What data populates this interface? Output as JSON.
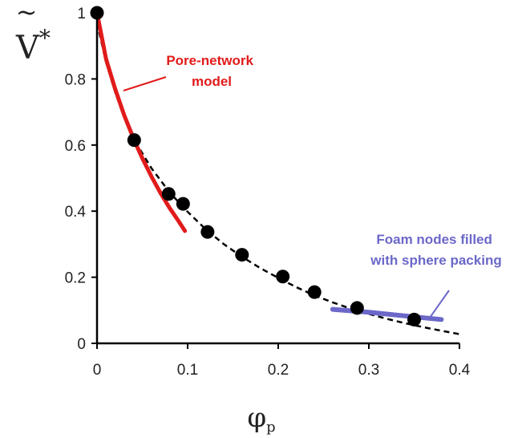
{
  "chart_data": {
    "type": "scatter",
    "xlabel": "φ",
    "xlabel_subscript": "p",
    "ylabel": "V",
    "ylabel_accent": "~",
    "ylabel_superscript": "*",
    "xlim": [
      0,
      0.4
    ],
    "ylim": [
      0,
      1
    ],
    "x_ticks": [
      "0",
      "0.1",
      "0.2",
      "0.3",
      "0.4"
    ],
    "y_ticks": [
      "0",
      "0.2",
      "0.4",
      "0.6",
      "0.8",
      "1"
    ],
    "grid": false,
    "colors": {
      "points": "#000000",
      "dashed_fit": "#000000",
      "pore_network": "#e11b1b",
      "foam_nodes": "#6b68c9"
    },
    "series": [
      {
        "kind": "points",
        "x": [
          0,
          0.041,
          0.079,
          0.095,
          0.122,
          0.16,
          0.205,
          0.24,
          0.287,
          0.35
        ],
        "y": [
          1.0,
          0.615,
          0.452,
          0.422,
          0.337,
          0.268,
          0.202,
          0.155,
          0.107,
          0.072
        ]
      },
      {
        "kind": "dashed-curve",
        "x": [
          0,
          0.01,
          0.02,
          0.03,
          0.04,
          0.06,
          0.08,
          0.1,
          0.12,
          0.14,
          0.16,
          0.18,
          0.2,
          0.22,
          0.24,
          0.26,
          0.28,
          0.3,
          0.32,
          0.34,
          0.36,
          0.38,
          0.4
        ],
        "y": [
          0.97,
          0.85,
          0.76,
          0.685,
          0.62,
          0.53,
          0.457,
          0.398,
          0.345,
          0.3,
          0.262,
          0.228,
          0.198,
          0.17,
          0.145,
          0.124,
          0.105,
          0.089,
          0.074,
          0.061,
          0.049,
          0.038,
          0.028
        ]
      },
      {
        "kind": "solid-curve",
        "name": "Pore-network model",
        "x": [
          0,
          0.01,
          0.02,
          0.03,
          0.041,
          0.05,
          0.06,
          0.07,
          0.08,
          0.09,
          0.097
        ],
        "y": [
          1.0,
          0.86,
          0.77,
          0.69,
          0.615,
          0.56,
          0.505,
          0.455,
          0.41,
          0.37,
          0.34
        ]
      },
      {
        "kind": "solid-curve",
        "name": "Foam nodes filled with sphere packing",
        "x": [
          0.26,
          0.3,
          0.34,
          0.38
        ],
        "y": [
          0.103,
          0.094,
          0.083,
          0.072
        ]
      }
    ],
    "annotations": [
      {
        "lines": [
          "Pore-network",
          "model"
        ],
        "target_series": "Pore-network model"
      },
      {
        "lines": [
          "Foam nodes filled",
          "with sphere packing"
        ],
        "target_series": "Foam nodes filled with sphere packing"
      }
    ]
  }
}
